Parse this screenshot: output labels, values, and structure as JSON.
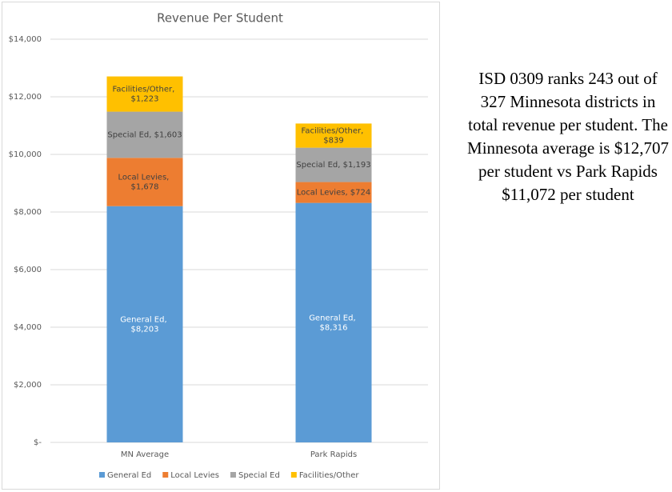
{
  "chart_data": {
    "type": "stacked-bar",
    "title": "Revenue Per Student",
    "categories": [
      "MN Average",
      "Park Rapids"
    ],
    "series": [
      {
        "name": "General Ed",
        "color": "#5b9bd5",
        "values": [
          8203,
          8316
        ],
        "value_labels": [
          "General Ed,  $8,203",
          "General Ed,  $8,316"
        ]
      },
      {
        "name": "Local Levies",
        "color": "#ed7d31",
        "values": [
          1678,
          724
        ],
        "value_labels": [
          "Local Levies,  $1,678",
          "Local Levies,  $724"
        ]
      },
      {
        "name": "Special Ed",
        "color": "#a5a5a5",
        "values": [
          1603,
          1193
        ],
        "value_labels": [
          "Special Ed,  $1,603",
          "Special Ed,  $1,193"
        ]
      },
      {
        "name": "Facilities/Other",
        "color": "#ffc000",
        "values": [
          1223,
          839
        ],
        "value_labels": [
          "Facilities/Other, $1,223",
          "Facilities/Other, $839"
        ]
      }
    ],
    "ylim": [
      0,
      14000
    ],
    "yticks": [
      {
        "value": 0,
        "label": "$-"
      },
      {
        "value": 2000,
        "label": "$2,000"
      },
      {
        "value": 4000,
        "label": "$4,000"
      },
      {
        "value": 6000,
        "label": "$6,000"
      },
      {
        "value": 8000,
        "label": "$8,000"
      },
      {
        "value": 10000,
        "label": "$10,000"
      },
      {
        "value": 12000,
        "label": "$12,000"
      },
      {
        "value": 14000,
        "label": "$14,000"
      }
    ],
    "grid": true,
    "legend": "bottom"
  },
  "side_text": "ISD 0309 ranks 243 out of 327 Minnesota districts in total revenue per student.  The Minnesota average is $12,707 per student vs Park Rapids $11,072 per student"
}
